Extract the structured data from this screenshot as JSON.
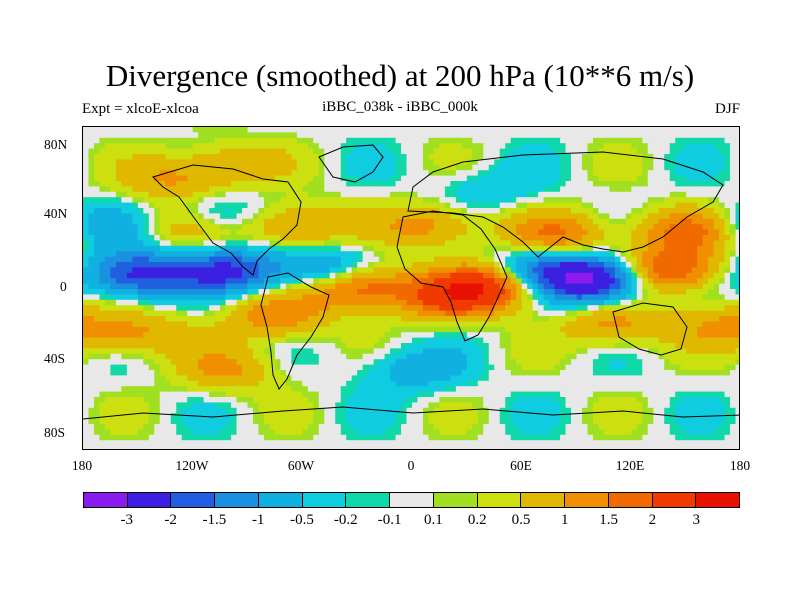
{
  "title": "Divergence (smoothed) at 200 hPa (10**6 m/s)",
  "subtitle_left": "Expt = xlcoE-xlcoa",
  "subtitle_center": "iBBC_038k - iBBC_000k",
  "subtitle_right": "DJF",
  "lat_ticks": [
    "80N",
    "40N",
    "0",
    "40S",
    "80S"
  ],
  "lon_ticks": [
    "180",
    "120W",
    "60W",
    "0",
    "60E",
    "120E",
    "180"
  ],
  "colorbar": {
    "colors": [
      "#8a1cf0",
      "#3c1fe0",
      "#2060e0",
      "#1a90e0",
      "#10b0e0",
      "#10cce0",
      "#10d8a8",
      "#e8e8e8",
      "#a0e020",
      "#cce010",
      "#e0b800",
      "#f09000",
      "#f06a00",
      "#f03a00",
      "#e81000"
    ],
    "labels": [
      "-3",
      "-2",
      "-1.5",
      "-1",
      "-0.5",
      "-0.2",
      "-0.1",
      "0.1",
      "0.2",
      "0.5",
      "1",
      "1.5",
      "2",
      "3"
    ]
  },
  "chart_data": {
    "type": "heatmap",
    "title": "Divergence (smoothed) at 200 hPa (10**6 m/s)",
    "experiment": "xlcoE-xlcoa",
    "comparison": "iBBC_038k - iBBC_000k",
    "season": "DJF",
    "units": "10**6 m/s",
    "xlim": [
      -180,
      180
    ],
    "ylim": [
      -90,
      90
    ],
    "levels": [
      -3,
      -2,
      -1.5,
      -1,
      -0.5,
      -0.2,
      -0.1,
      0.1,
      0.2,
      0.5,
      1,
      1.5,
      2,
      3
    ],
    "features": [
      {
        "lon": 100,
        "lat": 5,
        "value": -3.2
      },
      {
        "lon": 140,
        "lat": 10,
        "value": 2.2
      },
      {
        "lon": 150,
        "lat": 32,
        "value": 1.6
      },
      {
        "lon": 45,
        "lat": 3,
        "value": 2.6
      },
      {
        "lon": 20,
        "lat": -5,
        "value": 1.8
      },
      {
        "lon": -30,
        "lat": 2,
        "value": 2.4
      },
      {
        "lon": -75,
        "lat": -15,
        "value": 1.4
      },
      {
        "lon": -150,
        "lat": 8,
        "value": -2.3
      },
      {
        "lon": -100,
        "lat": 10,
        "value": -2.0
      },
      {
        "lon": -45,
        "lat": 10,
        "value": -1.6
      },
      {
        "lon": 65,
        "lat": 10,
        "value": -1.8
      },
      {
        "lon": 10,
        "lat": 35,
        "value": 1.3
      },
      {
        "lon": 80,
        "lat": 30,
        "value": 1.5
      },
      {
        "lon": -110,
        "lat": 40,
        "value": -1.2
      },
      {
        "lon": -65,
        "lat": 35,
        "value": 1.4
      },
      {
        "lon": -125,
        "lat": 35,
        "value": 1.2
      },
      {
        "lon": -170,
        "lat": 35,
        "value": -0.9
      },
      {
        "lon": -150,
        "lat": -25,
        "value": 1.1
      },
      {
        "lon": 110,
        "lat": -20,
        "value": 1.2
      },
      {
        "lon": 170,
        "lat": -20,
        "value": 1.0
      },
      {
        "lon": -100,
        "lat": -45,
        "value": 1.0
      },
      {
        "lon": 0,
        "lat": -45,
        "value": -0.8
      },
      {
        "lon": -130,
        "lat": 60,
        "value": 1.0
      },
      {
        "lon": -100,
        "lat": 70,
        "value": 0.9
      },
      {
        "lon": 40,
        "lat": 55,
        "value": -0.5
      }
    ]
  }
}
